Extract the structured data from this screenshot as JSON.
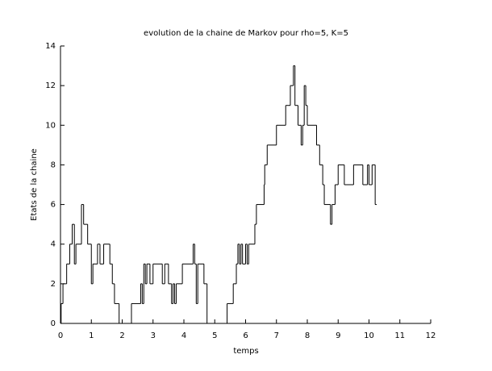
{
  "chart_data": {
    "type": "step",
    "title": "evolution de la chaine de Markov pour rho=5, K=5",
    "xlabel": "temps",
    "ylabel": "Etats de la chaine",
    "color": "#000000",
    "x": [
      0,
      0.02,
      0.08,
      0.2,
      0.3,
      0.38,
      0.45,
      0.5,
      0.68,
      0.75,
      0.88,
      1.0,
      1.05,
      1.2,
      1.28,
      1.4,
      1.6,
      1.68,
      1.75,
      1.9,
      2.3,
      2.6,
      2.65,
      2.7,
      2.75,
      2.8,
      2.9,
      3.0,
      3.3,
      3.38,
      3.5,
      3.6,
      3.65,
      3.7,
      3.75,
      3.95,
      4.3,
      4.35,
      4.4,
      4.45,
      4.65,
      4.75,
      5.4,
      5.6,
      5.7,
      5.75,
      5.8,
      5.85,
      5.9,
      6.0,
      6.05,
      6.1,
      6.3,
      6.35,
      6.6,
      6.62,
      6.7,
      7.0,
      7.3,
      7.45,
      7.55,
      7.6,
      7.7,
      7.8,
      7.85,
      7.9,
      7.95,
      8.0,
      8.3,
      8.4,
      8.5,
      8.55,
      8.75,
      8.8,
      8.9,
      9.0,
      9.2,
      9.5,
      9.8,
      9.95,
      10.0,
      10.1,
      10.2,
      10.25
    ],
    "values": [
      0,
      1,
      2,
      3,
      4,
      5,
      3,
      4,
      6,
      5,
      4,
      2,
      3,
      4,
      3,
      4,
      3,
      2,
      1,
      0,
      1,
      2,
      1,
      3,
      2,
      3,
      2,
      3,
      2,
      3,
      2,
      1,
      2,
      1,
      2,
      3,
      4,
      3,
      1,
      3,
      2,
      0,
      1,
      2,
      3,
      4,
      3,
      4,
      3,
      4,
      3,
      4,
      5,
      6,
      7,
      8,
      9,
      10,
      11,
      12,
      13,
      11,
      10,
      9,
      10,
      12,
      11,
      10,
      9,
      8,
      7,
      6,
      5,
      6,
      7,
      8,
      7,
      8,
      7,
      8,
      7,
      8,
      6,
      6
    ],
    "xlim": [
      0,
      12
    ],
    "ylim": [
      0,
      14
    ],
    "xticks": [
      0,
      1,
      2,
      3,
      4,
      5,
      6,
      7,
      8,
      9,
      10,
      11,
      12
    ],
    "yticks": [
      0,
      2,
      4,
      6,
      8,
      10,
      12,
      14
    ]
  }
}
